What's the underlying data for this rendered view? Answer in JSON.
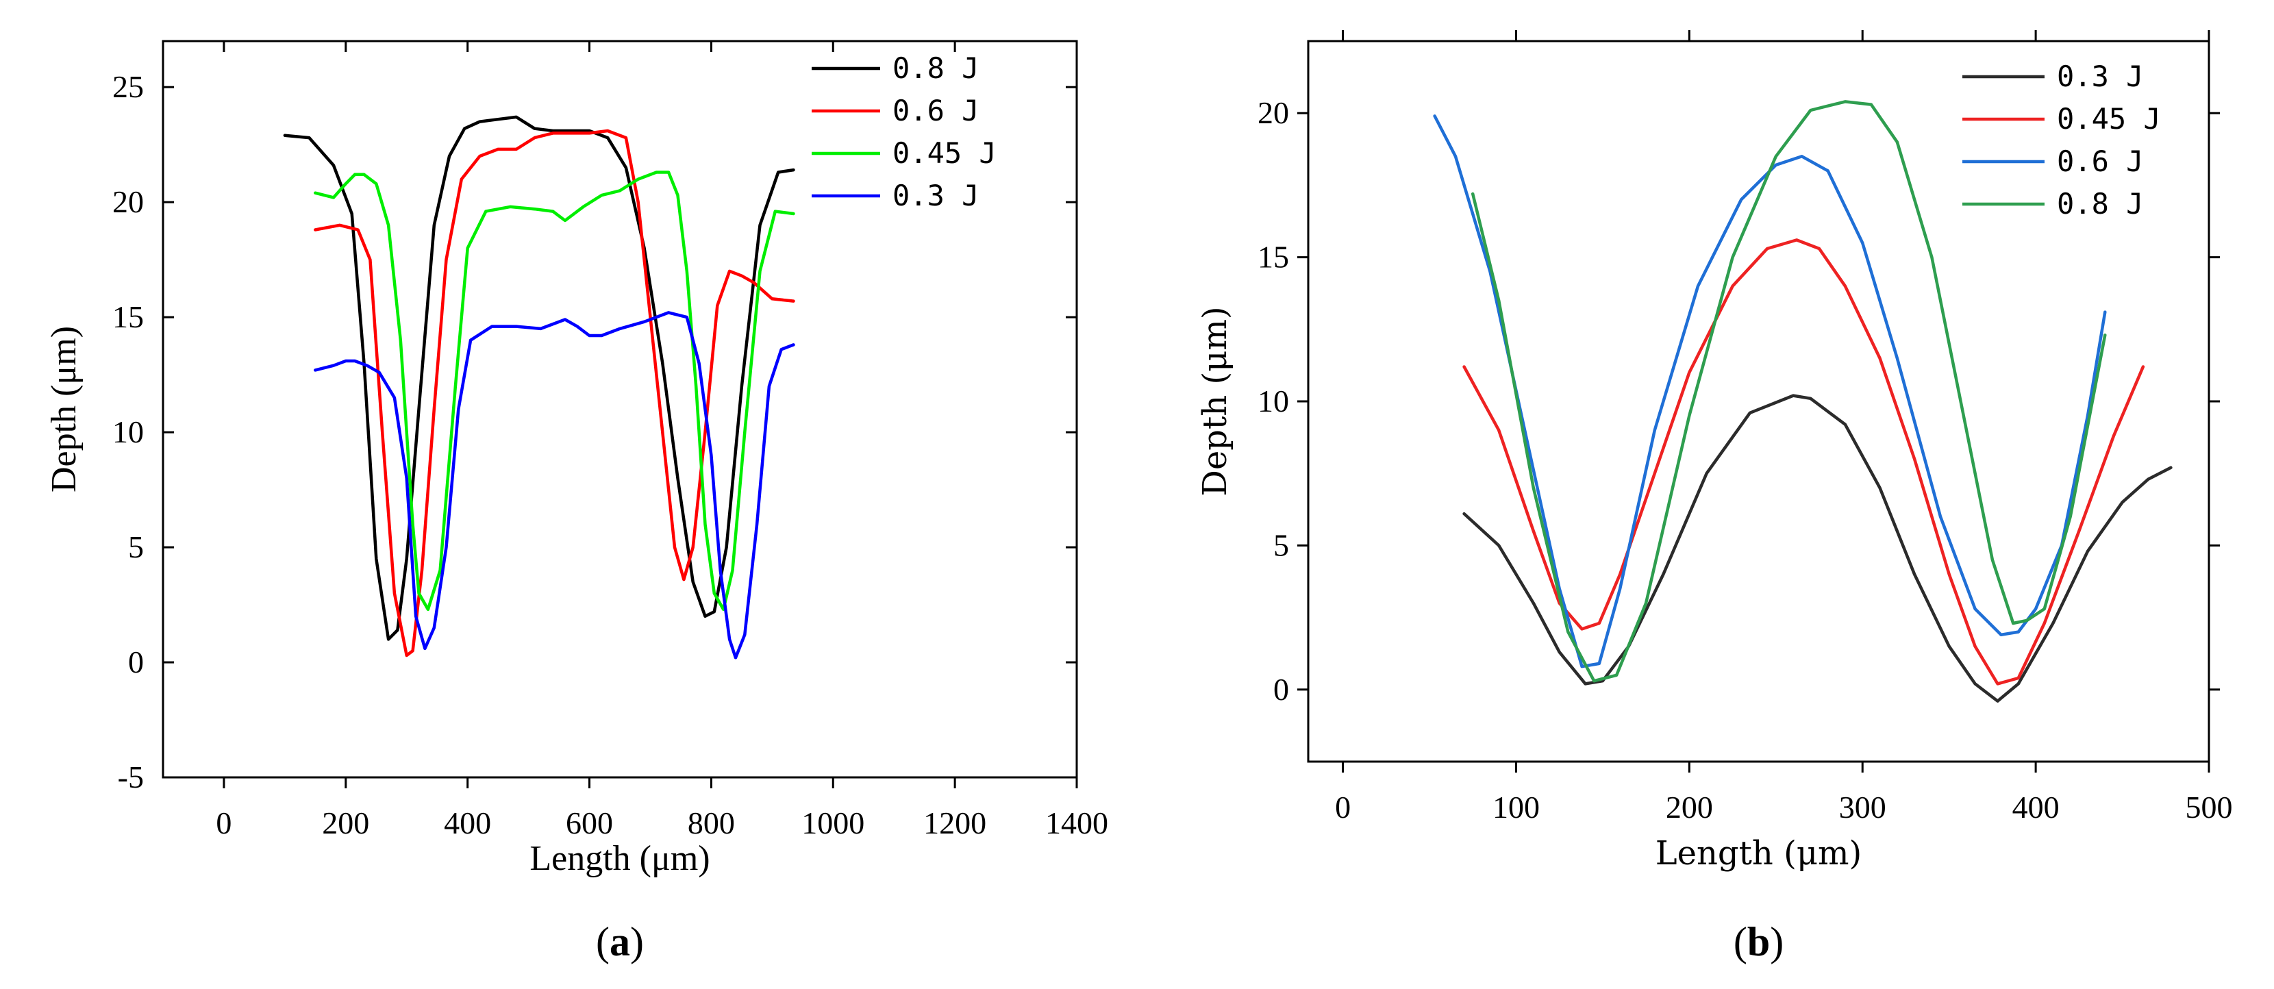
{
  "chart_data": [
    {
      "id": "a",
      "type": "line",
      "panel_label_open": "(",
      "panel_label_letter": "a",
      "panel_label_close": ")",
      "xlabel": "Length (μm)",
      "ylabel": "Depth (μm)",
      "xlim": [
        -100,
        1400
      ],
      "ylim": [
        -5,
        27
      ],
      "xticks": [
        0,
        200,
        400,
        600,
        800,
        1000,
        1200,
        1400
      ],
      "yticks": [
        -5,
        0,
        5,
        10,
        15,
        20,
        25
      ],
      "legend_position": "top-right",
      "series": [
        {
          "name": "0.8 J",
          "color": "#000000",
          "x": [
            100,
            140,
            180,
            210,
            230,
            250,
            270,
            285,
            300,
            320,
            345,
            370,
            395,
            420,
            450,
            480,
            510,
            540,
            570,
            600,
            630,
            660,
            690,
            720,
            745,
            770,
            790,
            805,
            825,
            850,
            880,
            910,
            935
          ],
          "y": [
            22.9,
            22.8,
            21.6,
            19.5,
            13,
            4.5,
            1,
            1.4,
            4.5,
            11,
            19,
            22,
            23.2,
            23.5,
            23.6,
            23.7,
            23.2,
            23.1,
            23.1,
            23.1,
            22.8,
            21.5,
            18,
            13,
            8,
            3.5,
            2,
            2.2,
            5,
            12,
            19,
            21.3,
            21.4
          ]
        },
        {
          "name": "0.6 J",
          "color": "#ff0000",
          "x": [
            150,
            190,
            220,
            240,
            260,
            280,
            300,
            310,
            325,
            345,
            365,
            390,
            420,
            450,
            480,
            510,
            540,
            570,
            600,
            630,
            660,
            680,
            700,
            720,
            740,
            755,
            770,
            790,
            810,
            830,
            850,
            870,
            900,
            935
          ],
          "y": [
            18.8,
            19,
            18.8,
            17.5,
            10,
            3,
            0.3,
            0.5,
            4,
            11,
            17.5,
            21,
            22,
            22.3,
            22.3,
            22.8,
            23,
            23,
            23,
            23.1,
            22.8,
            20,
            15,
            10,
            5,
            3.6,
            5,
            10,
            15.5,
            17,
            16.8,
            16.5,
            15.8,
            15.7
          ]
        },
        {
          "name": "0.45 J",
          "color": "#00ee00",
          "x": [
            150,
            180,
            200,
            215,
            230,
            250,
            270,
            290,
            310,
            320,
            335,
            355,
            380,
            400,
            430,
            470,
            510,
            540,
            560,
            590,
            620,
            650,
            680,
            710,
            730,
            745,
            760,
            775,
            790,
            805,
            820,
            835,
            855,
            880,
            905,
            935
          ],
          "y": [
            20.4,
            20.2,
            20.8,
            21.2,
            21.2,
            20.8,
            19,
            14,
            6,
            3,
            2.3,
            4,
            12,
            18,
            19.6,
            19.8,
            19.7,
            19.6,
            19.2,
            19.8,
            20.3,
            20.5,
            21,
            21.3,
            21.3,
            20.3,
            17,
            12,
            6,
            3,
            2.3,
            4,
            10,
            17,
            19.6,
            19.5
          ]
        },
        {
          "name": "0.3 J",
          "color": "#0000ff",
          "x": [
            150,
            180,
            200,
            215,
            235,
            255,
            280,
            300,
            315,
            330,
            345,
            365,
            385,
            405,
            440,
            480,
            520,
            560,
            580,
            600,
            620,
            650,
            690,
            730,
            760,
            780,
            800,
            815,
            830,
            840,
            855,
            875,
            895,
            915,
            935
          ],
          "y": [
            12.7,
            12.9,
            13.1,
            13.1,
            12.9,
            12.6,
            11.5,
            8,
            2,
            0.6,
            1.5,
            5,
            11,
            14,
            14.6,
            14.6,
            14.5,
            14.9,
            14.6,
            14.2,
            14.2,
            14.5,
            14.8,
            15.2,
            15,
            13,
            9,
            4,
            1,
            0.2,
            1.2,
            6,
            12,
            13.6,
            13.8
          ]
        }
      ]
    },
    {
      "id": "b",
      "type": "line",
      "panel_label_open": "(",
      "panel_label_letter": "b",
      "panel_label_close": ")",
      "xlabel": "Length (μm)",
      "ylabel": "Depth (μm)",
      "xlim": [
        -20,
        500
      ],
      "ylim": [
        -2.5,
        22.5
      ],
      "xticks": [
        0,
        100,
        200,
        300,
        400,
        500
      ],
      "yticks": [
        0,
        5,
        10,
        15,
        20
      ],
      "legend_position": "top-right",
      "series": [
        {
          "name": "0.3 J",
          "color": "#2b2b2b",
          "x": [
            70,
            90,
            110,
            125,
            140,
            150,
            165,
            185,
            210,
            235,
            260,
            270,
            290,
            310,
            330,
            350,
            365,
            378,
            390,
            410,
            430,
            450,
            465,
            478
          ],
          "y": [
            6.1,
            5,
            3,
            1.3,
            0.2,
            0.3,
            1.5,
            4,
            7.5,
            9.6,
            10.2,
            10.1,
            9.2,
            7,
            4,
            1.5,
            0.2,
            -0.4,
            0.2,
            2.3,
            4.8,
            6.5,
            7.3,
            7.7
          ]
        },
        {
          "name": "0.45 J",
          "color": "#ee2222",
          "x": [
            70,
            90,
            110,
            125,
            138,
            148,
            160,
            180,
            200,
            225,
            245,
            262,
            275,
            290,
            310,
            330,
            350,
            365,
            378,
            390,
            405,
            425,
            445,
            462
          ],
          "y": [
            11.2,
            9,
            5.5,
            3,
            2.1,
            2.3,
            4,
            7.5,
            11,
            14,
            15.3,
            15.6,
            15.3,
            14,
            11.5,
            8,
            4,
            1.5,
            0.2,
            0.4,
            2.3,
            5.5,
            8.8,
            11.2
          ]
        },
        {
          "name": "0.6 J",
          "color": "#1f6fd6",
          "x": [
            53,
            65,
            85,
            105,
            125,
            138,
            148,
            160,
            180,
            205,
            230,
            250,
            265,
            280,
            300,
            320,
            345,
            365,
            380,
            390,
            400,
            415,
            430,
            440
          ],
          "y": [
            19.9,
            18.5,
            14.5,
            9,
            3.5,
            0.8,
            0.9,
            3.5,
            9,
            14,
            17,
            18.2,
            18.5,
            18,
            15.5,
            11.5,
            6,
            2.8,
            1.9,
            2,
            2.8,
            5,
            9.5,
            13.1
          ]
        },
        {
          "name": "0.8 J",
          "color": "#2e9e4f",
          "x": [
            75,
            90,
            110,
            130,
            145,
            158,
            175,
            200,
            225,
            250,
            270,
            290,
            305,
            320,
            340,
            360,
            375,
            387,
            395,
            405,
            420,
            440
          ],
          "y": [
            17.2,
            13.5,
            7,
            2,
            0.3,
            0.5,
            3,
            9.5,
            15,
            18.5,
            20.1,
            20.4,
            20.3,
            19,
            15,
            9,
            4.5,
            2.3,
            2.4,
            2.8,
            6,
            12.3
          ]
        }
      ]
    }
  ]
}
